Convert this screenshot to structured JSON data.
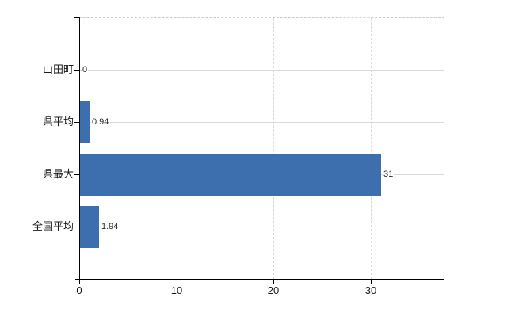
{
  "chart_data": {
    "type": "bar",
    "orientation": "horizontal",
    "title": "",
    "xlabel": "",
    "ylabel": "",
    "categories": [
      "山田町",
      "県平均",
      "県最大",
      "全国平均"
    ],
    "values": [
      0,
      0.94,
      31,
      1.94
    ],
    "value_labels": [
      "0",
      "0.94",
      "31",
      "1.94"
    ],
    "xlim": [
      0,
      37.5
    ],
    "xticks": [
      0,
      10,
      20,
      30
    ],
    "xtick_labels": [
      "0",
      "10",
      "20",
      "30"
    ],
    "grid": {
      "vertical_gridlines": "dashed",
      "horizontal_gridlines": "solid",
      "plot_top_border": "dashed"
    },
    "legend": "none",
    "colors": {
      "bar": "#3d6eae",
      "axis": "#000000",
      "gridline_horizontal": "#d6ddd6",
      "gridline_vertical": "#d8d8d8",
      "top_border": "#cccccc",
      "text": "#1a1a1a"
    }
  }
}
